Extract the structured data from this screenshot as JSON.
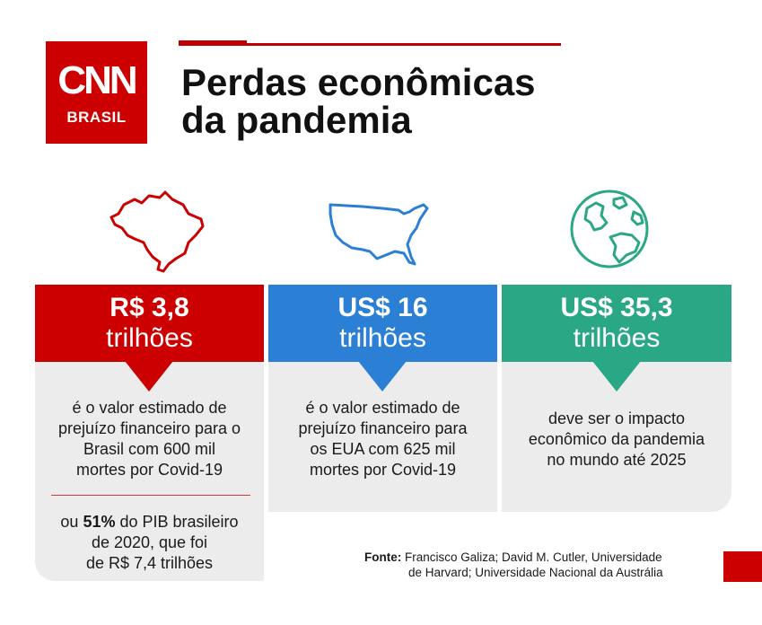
{
  "header": {
    "logo_text": "CNN",
    "logo_subtitle": "BRASIL",
    "title_line1": "Perdas econômicas",
    "title_line2": "da pandemia"
  },
  "columns": [
    {
      "icon": "brazil-map-icon",
      "color": "#cc0000",
      "amount": "R$ 3,8",
      "unit": "trilhões",
      "description": [
        "é o valor estimado de",
        "prejuízo financeiro para o",
        "Brasil com 600 mil",
        "mortes por Covid-19"
      ],
      "extra_prefix": "ou ",
      "extra_bold": "51%",
      "extra_line1_rest": " do PIB brasileiro",
      "extra_line2": "de 2020, que foi",
      "extra_line3": "de R$ 7,4 trilhões"
    },
    {
      "icon": "usa-map-icon",
      "color": "#2b80d6",
      "amount": "US$ 16",
      "unit": "trilhões",
      "description": [
        "é o valor estimado de",
        "prejuízo financeiro para",
        "os EUA com 625 mil",
        "mortes por Covid-19"
      ]
    },
    {
      "icon": "globe-icon",
      "color": "#2aa785",
      "amount": "US$ 35,3",
      "unit": "trilhões",
      "description": [
        "deve ser o impacto",
        "econômico da pandemia",
        "no mundo até 2025"
      ]
    }
  ],
  "source": {
    "label": "Fonte:",
    "line1": " Francisco Galiza; David M. Cutler, Universidade",
    "line2": "de Harvard; Universidade Nacional da Austrália"
  }
}
